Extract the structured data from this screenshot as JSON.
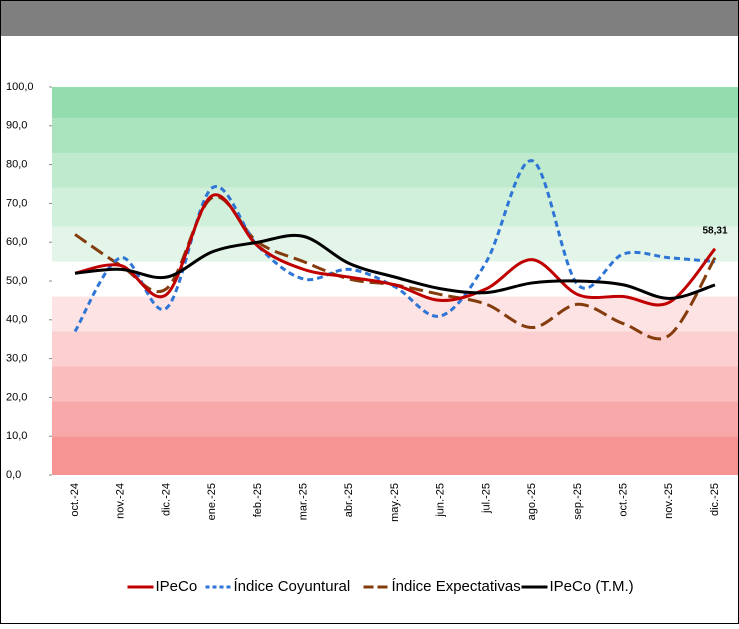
{
  "chart_data": {
    "type": "line",
    "categories": [
      "oct.-24",
      "nov.-24",
      "dic.-24",
      "ene.-25",
      "feb.-25",
      "mar.-25",
      "abr.-25",
      "may.-25",
      "jun.-25",
      "jul.-25",
      "ago.-25",
      "sep.-25",
      "oct.-25",
      "nov.-25",
      "dic.-25"
    ],
    "series": [
      {
        "name": "IPeCo",
        "color": "#c00000",
        "dash": "",
        "values": [
          52,
          54,
          46.5,
          72,
          59,
          53,
          51,
          49,
          45,
          48,
          55.5,
          46.5,
          46,
          44.5,
          58.31
        ],
        "value_labels": [
          null,
          null,
          null,
          null,
          null,
          null,
          null,
          null,
          null,
          null,
          null,
          null,
          null,
          null,
          "58,31"
        ]
      },
      {
        "name": "Índice Coyuntural",
        "color": "#2e75d6",
        "dash": "6,4",
        "values": [
          37,
          56,
          43,
          74,
          59,
          50.5,
          53,
          48.5,
          41,
          55,
          81,
          49,
          57,
          56,
          55
        ]
      },
      {
        "name": "Índice Expectativas",
        "color": "#843c0c",
        "dash": "14,6",
        "values": [
          62,
          54,
          48,
          71.5,
          60,
          55,
          50.5,
          49,
          46.5,
          44,
          38,
          44,
          39,
          36,
          56
        ]
      },
      {
        "name": "IPeCo (T.M.)",
        "color": "#000000",
        "dash": "",
        "values": [
          52,
          53,
          51,
          57.5,
          60,
          61.5,
          54.5,
          51,
          48,
          47,
          49.5,
          50,
          49,
          45.5,
          49
        ]
      }
    ],
    "ylim": [
      0,
      100
    ],
    "yticks": [
      {
        "value": 0,
        "label": "0,0"
      },
      {
        "value": 10,
        "label": "10,0"
      },
      {
        "value": 20,
        "label": "20,0"
      },
      {
        "value": 30,
        "label": "30,0"
      },
      {
        "value": 40,
        "label": "40,0"
      },
      {
        "value": 50,
        "label": "50,0"
      },
      {
        "value": 60,
        "label": "60,0"
      },
      {
        "value": 70,
        "label": "70,0"
      },
      {
        "value": 80,
        "label": "80,0"
      },
      {
        "value": 90,
        "label": "90,0"
      },
      {
        "value": 100,
        "label": "100,0"
      }
    ],
    "bands": [
      {
        "from": 92,
        "to": 100,
        "color": "#92dcae"
      },
      {
        "from": 83,
        "to": 92,
        "color": "#a9e4be"
      },
      {
        "from": 74,
        "to": 83,
        "color": "#bfeacd"
      },
      {
        "from": 64,
        "to": 74,
        "color": "#d1f0db"
      },
      {
        "from": 55,
        "to": 64,
        "color": "#e2f5e8"
      },
      {
        "from": 37,
        "to": 46,
        "color": "#fde3e3"
      },
      {
        "from": 28,
        "to": 37,
        "color": "#fcd0d0"
      },
      {
        "from": 19,
        "to": 28,
        "color": "#fabcbc"
      },
      {
        "from": 10,
        "to": 19,
        "color": "#f8a8a8"
      },
      {
        "from": 0,
        "to": 10,
        "color": "#f69494"
      }
    ],
    "legend": "bottom"
  }
}
